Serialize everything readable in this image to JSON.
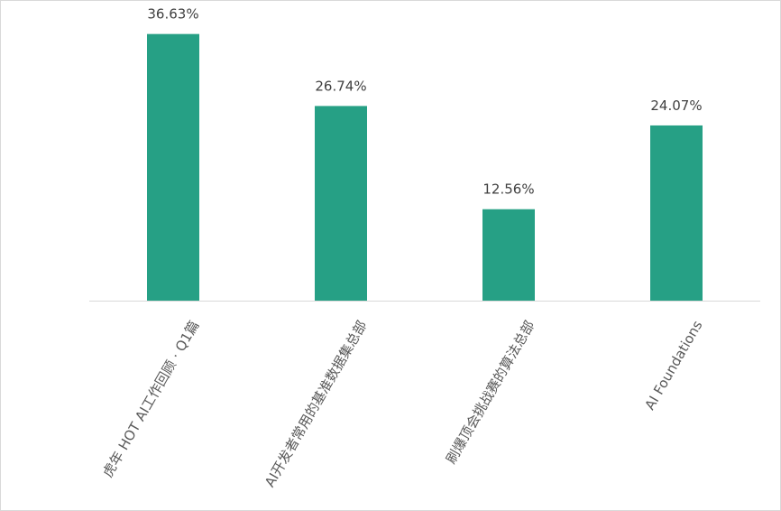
{
  "chart_data": {
    "type": "bar",
    "categories": [
      "虎年 HOT AI工作回顾 · Q1篇",
      "AI开发者常用的基准数据集总部",
      "刷爆顶会挑战赛的算法总部",
      "AI Foundations"
    ],
    "values": [
      36.63,
      26.74,
      12.56,
      24.07
    ],
    "value_labels": [
      "36.63%",
      "26.74%",
      "12.56%",
      "24.07%"
    ],
    "unit": "%",
    "title": "",
    "xlabel": "",
    "ylabel": "",
    "ylim": [
      0,
      40
    ],
    "grid": false,
    "legend": "none",
    "bar_color": "#26a085",
    "axis_color": "#d9d9d9",
    "label_color": "#404040"
  }
}
